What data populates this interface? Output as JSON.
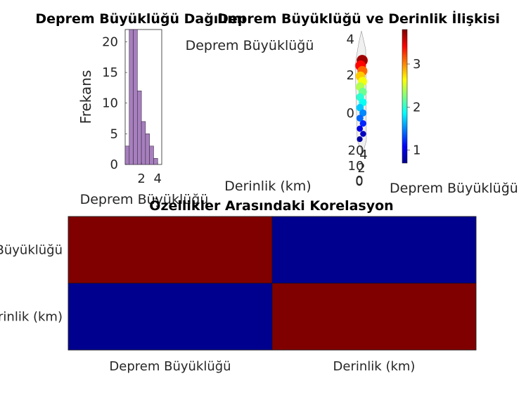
{
  "colors": {
    "hist_bar": "#a77fbd",
    "hist_edge": "#3b2d45",
    "heat_high": "#800000",
    "heat_low": "#00008f",
    "axis": "#262626"
  },
  "chart_data": [
    {
      "type": "bar",
      "title": "Deprem Büyüklüğü Dağılımı",
      "xlabel": "Deprem Büyüklüğü",
      "ylabel": "Frekans",
      "bin_edges": [
        0.0,
        0.5,
        1.0,
        1.5,
        2.0,
        2.5,
        3.0,
        3.5,
        4.0,
        4.5
      ],
      "values": [
        3,
        22,
        22,
        12,
        7,
        5,
        3,
        1,
        0
      ],
      "xticks": [
        "2",
        "4"
      ],
      "yticks": [
        "0",
        "5",
        "10",
        "15",
        "20"
      ],
      "xlim": [
        0.0,
        4.5
      ],
      "ylim": [
        0,
        22
      ]
    },
    {
      "type": "scatter",
      "title": "Deprem Büyüklüğü ve Derinlik İlişkisi",
      "xlabel": "Derinlik (km)",
      "xticks": [
        "20",
        "10",
        "0"
      ],
      "yticks": [
        "0",
        "2",
        "4"
      ],
      "ztick_extra": [
        "4",
        "2",
        "0"
      ],
      "colorbar_label": "Deprem Büyüklüğü",
      "colorbar_ticks": [
        "1",
        "2",
        "3"
      ],
      "colorbar_range": [
        0.7,
        3.8
      ],
      "points": [
        {
          "magnitude": 3.7
        },
        {
          "magnitude": 3.4
        },
        {
          "magnitude": 3.1
        },
        {
          "magnitude": 2.8
        },
        {
          "magnitude": 2.6
        },
        {
          "magnitude": 2.4
        },
        {
          "magnitude": 2.2
        },
        {
          "magnitude": 2.0
        },
        {
          "magnitude": 1.9
        },
        {
          "magnitude": 1.7
        },
        {
          "magnitude": 1.5
        },
        {
          "magnitude": 1.4
        },
        {
          "magnitude": 1.2
        },
        {
          "magnitude": 1.0
        },
        {
          "magnitude": 0.9
        },
        {
          "magnitude": 0.8
        }
      ]
    },
    {
      "type": "heatmap",
      "title": "Özellikler Arasındaki Korelasyon",
      "row_labels": [
        "Deprem Büyüklüğü",
        "Derinlik (km)"
      ],
      "col_labels": [
        "Deprem Büyüklüğü",
        "Derinlik (km)"
      ],
      "values": [
        [
          1.0,
          -0.05
        ],
        [
          -0.05,
          1.0
        ]
      ]
    }
  ]
}
